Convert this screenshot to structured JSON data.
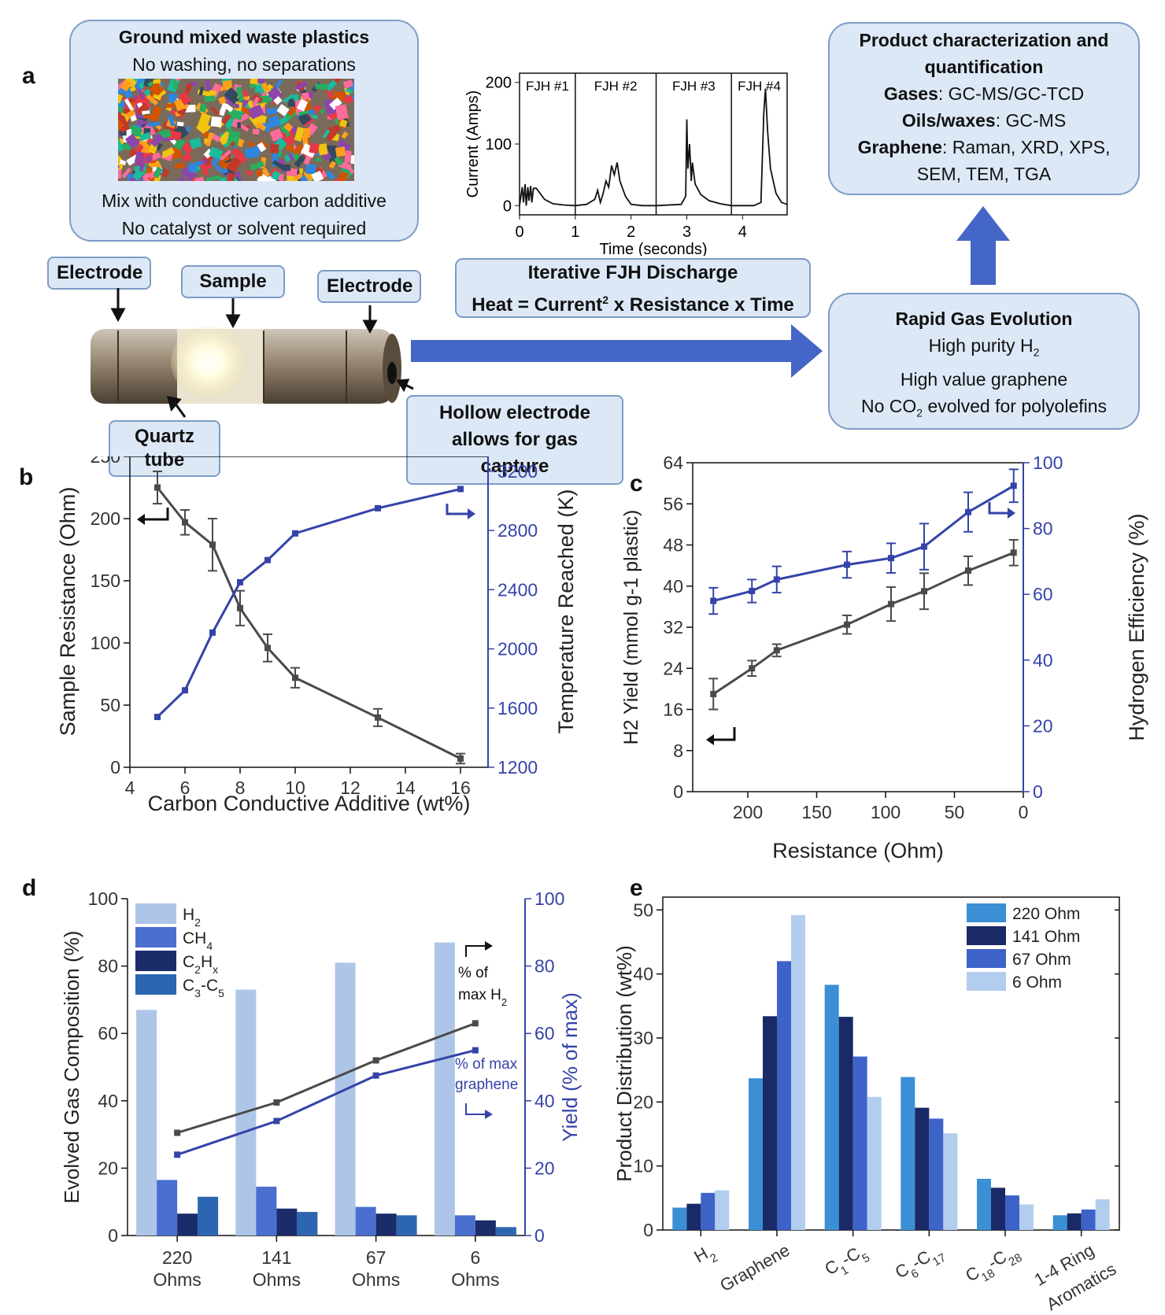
{
  "panel_letters": {
    "a": "a",
    "b": "b",
    "c": "c",
    "d": "d",
    "e": "e"
  },
  "panel_a": {
    "waste_box": {
      "title": "Ground mixed waste plastics",
      "line1": "No washing, no separations",
      "line2": "Mix with conductive carbon additive",
      "line3": "No catalyst or solvent required"
    },
    "labels": {
      "electrode_left": "Electrode",
      "sample": "Sample",
      "electrode_right": "Electrode",
      "quartz": "Quartz tube",
      "hollow_line1": "Hollow electrode",
      "hollow_line2": "allows for gas capture"
    },
    "discharge_box": {
      "title": "Iterative FJH Discharge",
      "formula_a": "Heat = Current",
      "formula_sup": "2",
      "formula_b": " x Resistance x Time"
    },
    "gas_box": {
      "title": "Rapid Gas Evolution",
      "line1": "High purity H",
      "line1_sub": "2",
      "line2": "High value graphene",
      "line3a": "No CO",
      "line3_sub": "2",
      "line3b": " evolved for polyolefins"
    },
    "product_box": {
      "title1": "Product characterization and",
      "title2": "quantification",
      "gases_label": "Gases",
      "gases_value": ": GC-MS/GC-TCD",
      "oils_label": "Oils/waxes",
      "oils_value": ": GC-MS",
      "graphene_label": "Graphene",
      "graphene_value": ": Raman, XRD, XPS,",
      "graphene_value2": "SEM, TEM, TGA"
    }
  },
  "chart_data": [
    {
      "id": "a-inset",
      "type": "line",
      "xlabel": "Time (seconds)",
      "ylabel": "Current (Amps)",
      "xlim": [
        0,
        4.8
      ],
      "ylim": [
        -15,
        215
      ],
      "xticks": [
        "0",
        "1",
        "2",
        "3",
        "4"
      ],
      "yticks": [
        "0",
        "100",
        "200"
      ],
      "segments": [
        "FJH #1",
        "FJH #2",
        "FJH #3",
        "FJH #4"
      ],
      "dividers": [
        1.0,
        2.45,
        3.8
      ],
      "x": [
        0,
        0.05,
        0.07,
        0.1,
        0.12,
        0.15,
        0.17,
        0.2,
        0.22,
        0.25,
        0.3,
        0.35,
        0.45,
        0.6,
        0.8,
        1.0,
        1.2,
        1.35,
        1.4,
        1.45,
        1.5,
        1.55,
        1.6,
        1.65,
        1.7,
        1.75,
        1.8,
        1.9,
        2.0,
        2.2,
        2.45,
        2.9,
        2.98,
        3.0,
        3.02,
        3.05,
        3.08,
        3.1,
        3.15,
        3.25,
        3.4,
        3.6,
        3.8,
        4.2,
        4.33,
        4.38,
        4.41,
        4.45,
        4.5,
        4.6,
        4.7,
        4.8
      ],
      "y": [
        0,
        30,
        5,
        35,
        0,
        30,
        8,
        32,
        5,
        28,
        28,
        22,
        10,
        3,
        1,
        0,
        2,
        10,
        25,
        5,
        20,
        40,
        30,
        65,
        50,
        70,
        40,
        15,
        2,
        0,
        0,
        2,
        15,
        140,
        60,
        100,
        40,
        70,
        35,
        18,
        8,
        3,
        0,
        0,
        5,
        150,
        190,
        120,
        60,
        20,
        5,
        2
      ]
    },
    {
      "id": "b",
      "type": "line",
      "xlabel": "Carbon Conductive Additive (wt%)",
      "ylabel": "Sample Resistance (Ohm)",
      "ylabel2": "Temperature Reached (K)",
      "xlim": [
        4,
        17
      ],
      "ylim": [
        0,
        250
      ],
      "y2lim": [
        1200,
        3300
      ],
      "xticks": [
        "4",
        "6",
        "8",
        "10",
        "12",
        "14",
        "16"
      ],
      "yticks": [
        "0",
        "50",
        "100",
        "150",
        "200",
        "250"
      ],
      "y2ticks": [
        "1200",
        "1600",
        "2000",
        "2400",
        "2800",
        "3200"
      ],
      "series": [
        {
          "name": "Sample Resistance",
          "axis": "left",
          "color": "#4a4a4a",
          "x": [
            5,
            6,
            7,
            8,
            9,
            10,
            13,
            16
          ],
          "values": [
            225,
            197,
            179,
            128,
            96,
            72,
            40,
            7
          ],
          "err": [
            13,
            10,
            21,
            14,
            11,
            8,
            7,
            4
          ]
        },
        {
          "name": "Temperature Reached",
          "axis": "right",
          "color": "#3543a8",
          "x": [
            5,
            6,
            7,
            8,
            9,
            10,
            13,
            16
          ],
          "values": [
            1540,
            1720,
            2110,
            2450,
            2600,
            2780,
            2950,
            3080
          ]
        }
      ]
    },
    {
      "id": "c",
      "type": "line",
      "xlabel": "Resistance (Ohm)",
      "ylabel": "H2 Yield (mmol g-1 plastic)",
      "ylabel2": "Hydrogen Efficiency (%)",
      "xlim": [
        0,
        240
      ],
      "x_reversed": true,
      "ylim": [
        0,
        64
      ],
      "y2lim": [
        0,
        100
      ],
      "xticks": [
        "200",
        "150",
        "100",
        "50",
        "0"
      ],
      "yticks": [
        "0",
        "8",
        "16",
        "24",
        "32",
        "40",
        "48",
        "56",
        "64"
      ],
      "y2ticks": [
        "0",
        "20",
        "40",
        "60",
        "80",
        "100"
      ],
      "series": [
        {
          "name": "H2 Yield",
          "axis": "left",
          "color": "#4a4a4a",
          "x": [
            225,
            197,
            179,
            128,
            96,
            72,
            40,
            7
          ],
          "values": [
            19,
            24,
            27.5,
            32.5,
            36.5,
            39,
            43,
            46.5
          ],
          "err": [
            3,
            1.5,
            1.2,
            1.8,
            3.3,
            3.5,
            2.8,
            2.5
          ]
        },
        {
          "name": "Hydrogen Efficiency",
          "axis": "right",
          "color": "#3543a8",
          "x": [
            225,
            197,
            179,
            128,
            96,
            72,
            40,
            7
          ],
          "values": [
            58,
            61,
            64.5,
            69,
            71,
            74.5,
            85,
            93
          ],
          "err": [
            4,
            3.5,
            4,
            4,
            4.5,
            7,
            6,
            5
          ]
        }
      ]
    },
    {
      "id": "d",
      "type": "bar",
      "ylabel": "Evolved Gas Composition (%)",
      "ylabel2": "Yield (% of max)",
      "categories": [
        "220 Ohms",
        "141 Ohms",
        "67 Ohms",
        "6 Ohms"
      ],
      "ylim": [
        0,
        100
      ],
      "y2lim": [
        0,
        100
      ],
      "yticks": [
        "0",
        "20",
        "40",
        "60",
        "80",
        "100"
      ],
      "y2ticks": [
        "0",
        "20",
        "40",
        "60",
        "80",
        "100"
      ],
      "series": [
        {
          "name": "H2",
          "color": "#adc6e8",
          "values": [
            67,
            73,
            81,
            87
          ]
        },
        {
          "name": "CH4",
          "color": "#4a6fcf",
          "values": [
            16.5,
            14.5,
            8.5,
            6
          ]
        },
        {
          "name": "C2Hx",
          "color": "#1b2c6a",
          "values": [
            6.5,
            8,
            6.5,
            4.5
          ]
        },
        {
          "name": "C3-C5",
          "color": "#2d66b0",
          "values": [
            11.5,
            7,
            6,
            2.5
          ]
        }
      ],
      "lines": [
        {
          "name": "% of max H2",
          "axis": "right",
          "color": "#4a4a4a",
          "values": [
            30.5,
            39.5,
            52,
            63
          ]
        },
        {
          "name": "% of max graphene",
          "axis": "right",
          "color": "#3543a8",
          "values": [
            24,
            34,
            47.5,
            55
          ]
        }
      ],
      "annotations": {
        "h2_line1": "% of",
        "h2_line2": "max H",
        "h2_sub": "2",
        "g_line1": "% of max",
        "g_line2": "graphene"
      }
    },
    {
      "id": "e",
      "type": "bar",
      "ylabel": "Product Distribution (wt%)",
      "categories": [
        "H2",
        "Graphene",
        "C1-C5",
        "C6-C17",
        "C18-C28",
        "1-4 Ring Aromatics"
      ],
      "ylim": [
        0,
        52
      ],
      "yticks": [
        "0",
        "10",
        "20",
        "30",
        "40",
        "50"
      ],
      "legend_position": "top-right",
      "series": [
        {
          "name": "220 Ohm",
          "color": "#3b8fd4",
          "values": [
            3.5,
            23.7,
            38.3,
            23.9,
            8.0,
            2.3
          ]
        },
        {
          "name": "141 Ohm",
          "color": "#1a2a66",
          "values": [
            4.1,
            33.4,
            33.3,
            19.1,
            6.6,
            2.6
          ]
        },
        {
          "name": "67 Ohm",
          "color": "#3e63c8",
          "values": [
            5.8,
            42.0,
            27.1,
            17.4,
            5.4,
            3.2
          ]
        },
        {
          "name": "6 Ohm",
          "color": "#b3cdee",
          "values": [
            6.2,
            49.2,
            20.8,
            15.1,
            4.0,
            4.8
          ]
        }
      ]
    }
  ]
}
